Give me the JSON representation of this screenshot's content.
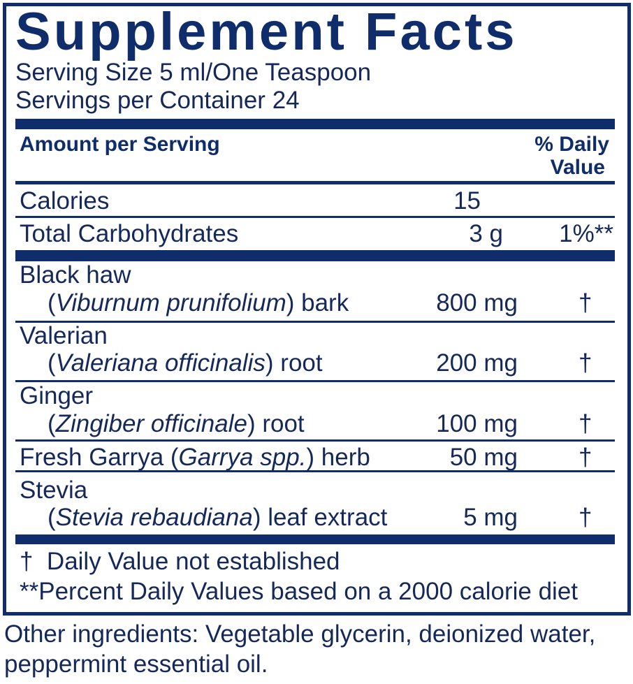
{
  "title": "Supplement Facts",
  "serving_size": "Serving Size 5 ml/One Teaspoon",
  "servings_per_container": "Servings per Container 24",
  "header": {
    "amount": "Amount per Serving",
    "dv_line1": "% Daily",
    "dv_line2": "Value"
  },
  "calories": {
    "label": "Calories",
    "amount": "15"
  },
  "carbs": {
    "label": "Total Carbohydrates",
    "amount": "3 g",
    "dv": "1%**"
  },
  "ingredients": [
    {
      "name": "Black haw",
      "pre": "(",
      "latin": "Viburnum prunifolium",
      "post": ") bark",
      "amount": "800 mg",
      "dv": "†"
    },
    {
      "name": "Valerian",
      "pre": "(",
      "latin": "Valeriana officinalis",
      "post": ") root",
      "amount": "200 mg",
      "dv": "†"
    },
    {
      "name": "Ginger",
      "pre": "(",
      "latin": "Zingiber officinale",
      "post": ") root",
      "amount": "100 mg",
      "dv": "†"
    },
    {
      "name": "Fresh Garrya (",
      "latin": "Garrya spp.",
      "post": ") herb",
      "amount": "50 mg",
      "dv": "†"
    },
    {
      "name": "Stevia",
      "pre": "(",
      "latin": "Stevia rebaudiana",
      "post": ") leaf extract",
      "amount": "5 mg",
      "dv": "†"
    }
  ],
  "footnotes": [
    "†  Daily Value not established",
    "**Percent Daily Values based on a 2000 calorie diet"
  ],
  "other_ingredients": [
    "Other ingredients: Vegetable glycerin, deionized water,",
    "peppermint essential oil."
  ],
  "colors": {
    "brand": "#0f2d6b"
  }
}
